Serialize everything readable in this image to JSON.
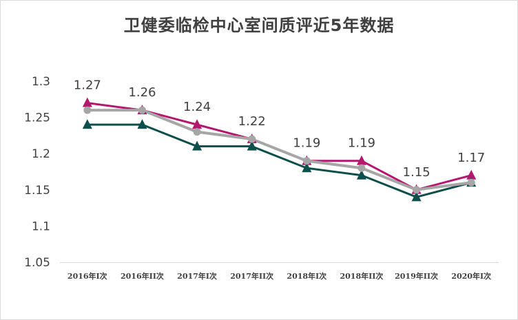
{
  "chart_data": {
    "type": "line",
    "title": "卫健委临检中心室间质评近5年数据",
    "categories": [
      "2016年I次",
      "2016年II次",
      "2017年I次",
      "2017年II次",
      "2018年I次",
      "2018年II次",
      "2019年II次",
      "2020年I次"
    ],
    "ylim": [
      1.05,
      1.3
    ],
    "yticks": [
      "1.05",
      "1.1",
      "1.15",
      "1.2",
      "1.25",
      "1.3"
    ],
    "grid": false,
    "legend": "none",
    "data_labels": [
      "1.27",
      "1.26",
      "1.24",
      "1.22",
      "1.19",
      "1.19",
      "1.15",
      "1.17"
    ],
    "series": [
      {
        "marker": "triangle",
        "color": "#B5176F",
        "values": [
          1.27,
          1.26,
          1.24,
          1.22,
          1.19,
          1.19,
          1.15,
          1.17
        ]
      },
      {
        "marker": "triangle",
        "color": "#0D4F4A",
        "values": [
          1.24,
          1.24,
          1.21,
          1.21,
          1.18,
          1.17,
          1.14,
          1.16
        ]
      },
      {
        "marker": "circle",
        "color": "#A6A6A6",
        "values": [
          1.26,
          1.26,
          1.23,
          1.22,
          1.19,
          1.18,
          1.15,
          1.16
        ]
      }
    ]
  }
}
